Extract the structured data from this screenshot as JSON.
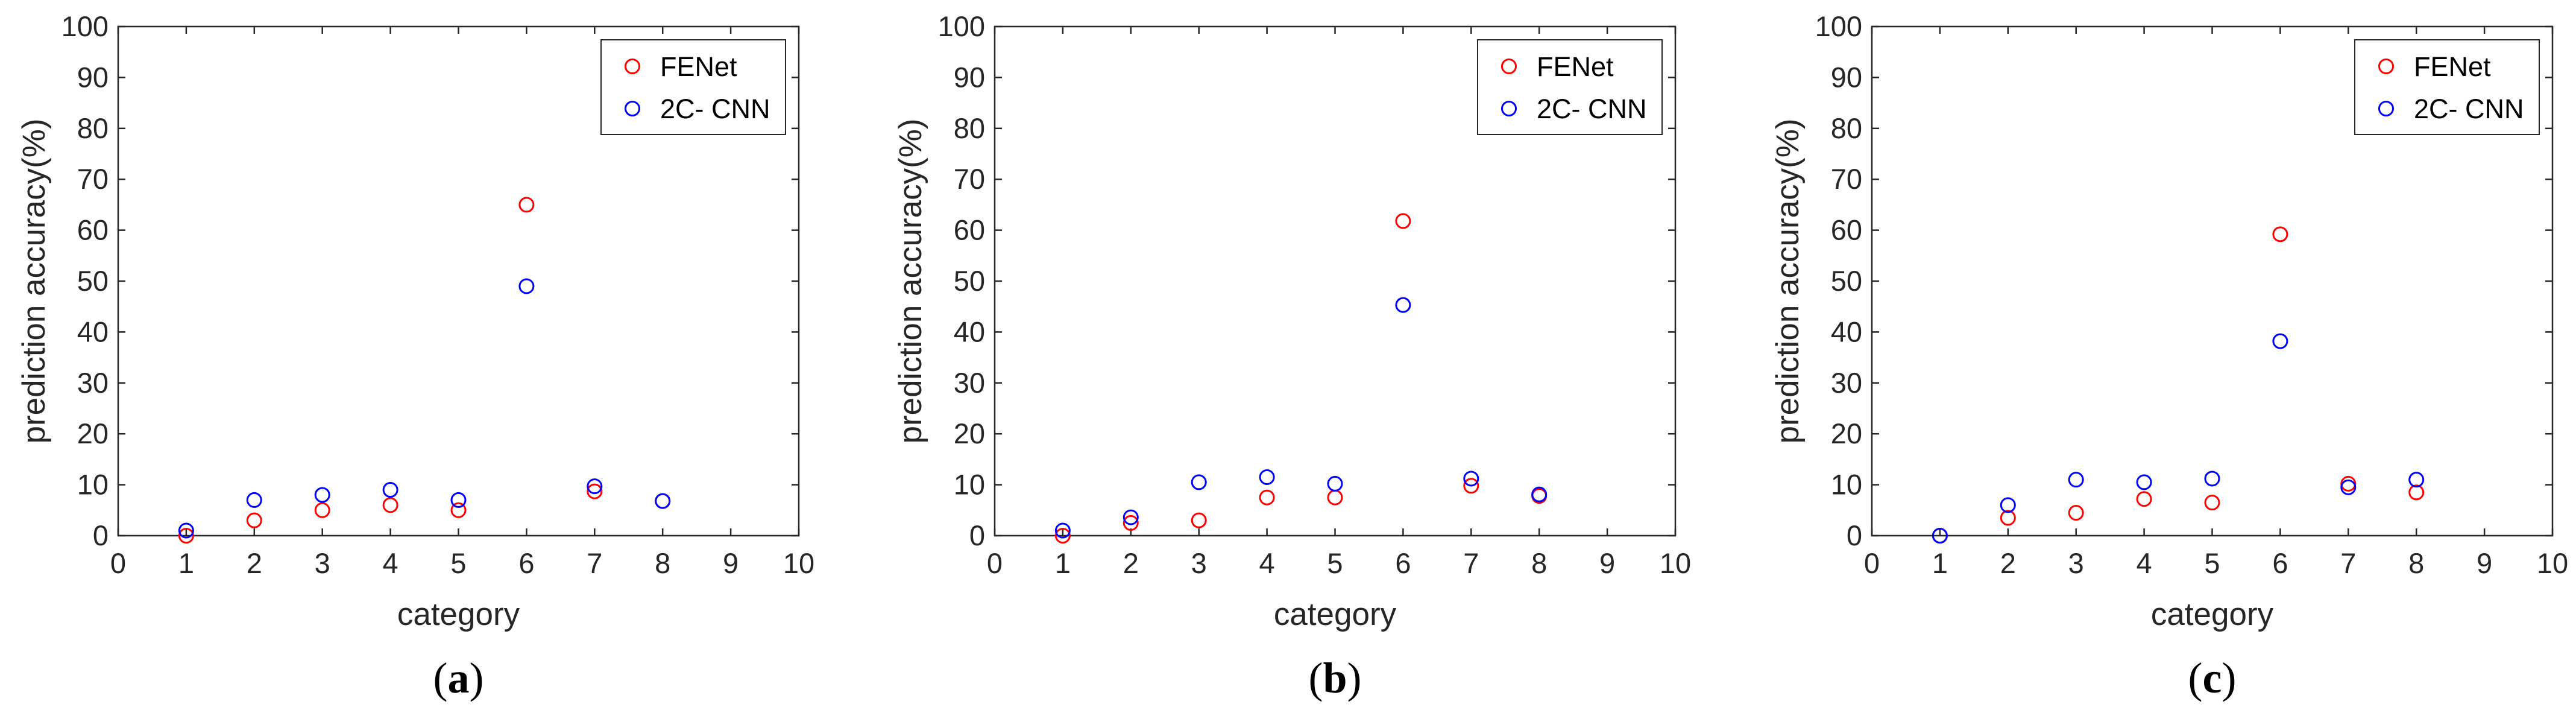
{
  "colors": {
    "fenet": "#ff0000",
    "cnn": "#0000ff",
    "axis": "#262626"
  },
  "chart_data": [
    {
      "type": "scatter",
      "caption": {
        "open": "(",
        "letter": "a",
        "close": ")"
      },
      "xlabel": "category",
      "ylabel": "prediction accuracy(%)",
      "xlim": [
        0,
        10
      ],
      "ylim": [
        0,
        100
      ],
      "xticks": [
        0,
        1,
        2,
        3,
        4,
        5,
        6,
        7,
        8,
        9,
        10
      ],
      "yticks": [
        0,
        10,
        20,
        30,
        40,
        50,
        60,
        70,
        80,
        90,
        100
      ],
      "grid": false,
      "legend_position": "top-right",
      "series": [
        {
          "name": "FENet",
          "color": "#ff0000",
          "x": [
            1,
            2,
            3,
            4,
            5,
            6,
            7,
            8
          ],
          "y": [
            0,
            3,
            5,
            6,
            5,
            65,
            8.7,
            6.8
          ]
        },
        {
          "name": "2C- CNN",
          "color": "#0000ff",
          "x": [
            1,
            2,
            3,
            4,
            5,
            6,
            7,
            8
          ],
          "y": [
            1,
            7,
            8,
            9,
            7,
            49,
            9.7,
            6.8
          ]
        }
      ]
    },
    {
      "type": "scatter",
      "caption": {
        "open": "(",
        "letter": "b",
        "close": ")"
      },
      "xlabel": "category",
      "ylabel": "prediction accuracy(%)",
      "xlim": [
        0,
        10
      ],
      "ylim": [
        0,
        100
      ],
      "xticks": [
        0,
        1,
        2,
        3,
        4,
        5,
        6,
        7,
        8,
        9,
        10
      ],
      "yticks": [
        0,
        10,
        20,
        30,
        40,
        50,
        60,
        70,
        80,
        90,
        100
      ],
      "grid": false,
      "legend_position": "top-right",
      "series": [
        {
          "name": "FENet",
          "color": "#ff0000",
          "x": [
            1,
            2,
            3,
            4,
            5,
            6,
            7,
            8
          ],
          "y": [
            0,
            2.5,
            3,
            7.5,
            7.5,
            61.8,
            9.8,
            7.8
          ]
        },
        {
          "name": "2C- CNN",
          "color": "#0000ff",
          "x": [
            1,
            2,
            3,
            4,
            5,
            6,
            7,
            8
          ],
          "y": [
            1,
            3.6,
            10.5,
            11.5,
            10.2,
            45.3,
            11.2,
            8.1
          ]
        }
      ]
    },
    {
      "type": "scatter",
      "caption": {
        "open": "(",
        "letter": "c",
        "close": ")"
      },
      "xlabel": "category",
      "ylabel": "prediction accuracy(%)",
      "xlim": [
        0,
        10
      ],
      "ylim": [
        0,
        100
      ],
      "xticks": [
        0,
        1,
        2,
        3,
        4,
        5,
        6,
        7,
        8,
        9,
        10
      ],
      "yticks": [
        0,
        10,
        20,
        30,
        40,
        50,
        60,
        70,
        80,
        90,
        100
      ],
      "grid": false,
      "legend_position": "top-right",
      "series": [
        {
          "name": "FENet",
          "color": "#ff0000",
          "x": [
            1,
            2,
            3,
            4,
            5,
            6,
            7,
            8
          ],
          "y": [
            0,
            3.5,
            4.5,
            7.2,
            6.5,
            59.2,
            10.2,
            8.5
          ]
        },
        {
          "name": "2C- CNN",
          "color": "#0000ff",
          "x": [
            1,
            2,
            3,
            4,
            5,
            6,
            7,
            8
          ],
          "y": [
            0,
            6,
            11,
            10.5,
            11.2,
            38.2,
            9.5,
            11
          ]
        }
      ]
    }
  ]
}
